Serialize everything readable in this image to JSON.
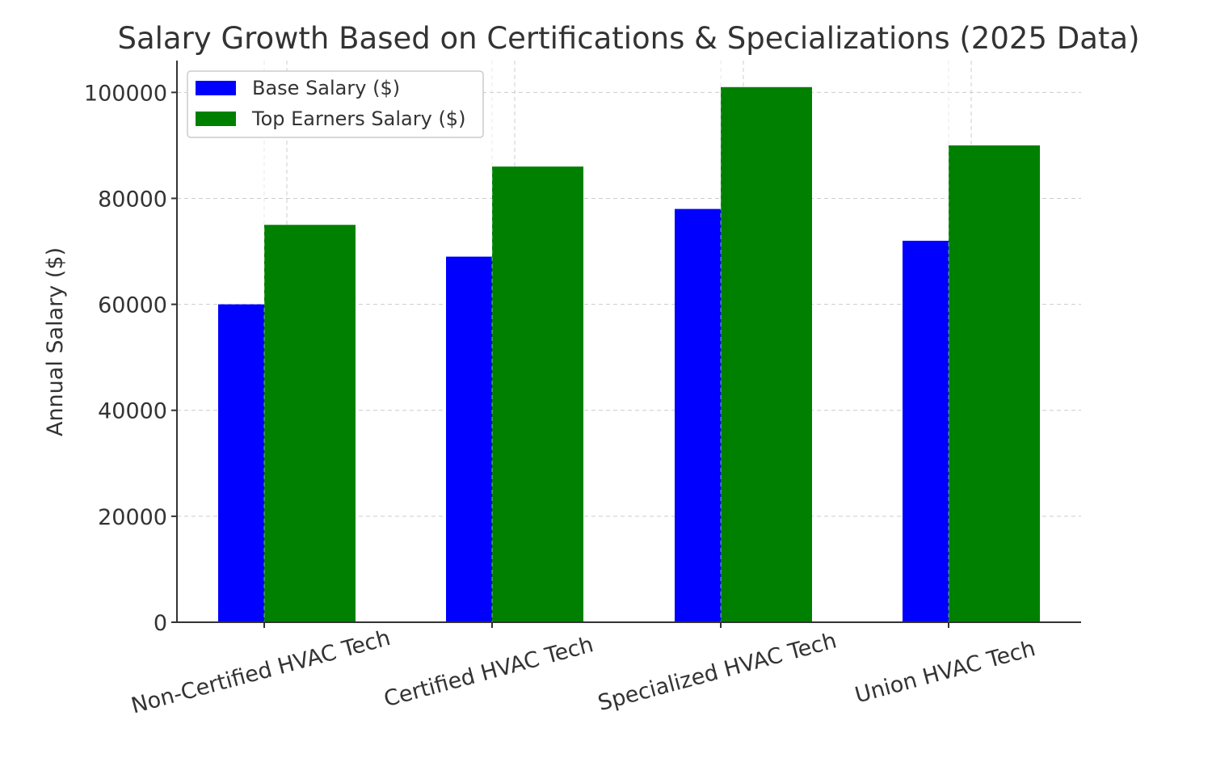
{
  "chart_data": {
    "type": "bar",
    "title": "Salary Growth Based on Certifications & Specializations (2025 Data)",
    "xlabel": "",
    "ylabel": "Annual Salary ($)",
    "categories": [
      "Non-Certified HVAC Tech",
      "Certified HVAC Tech",
      "Specialized HVAC Tech",
      "Union HVAC Tech"
    ],
    "series": [
      {
        "name": "Base Salary ($)",
        "values": [
          60000,
          69000,
          78000,
          72000
        ],
        "color": "#0000ff"
      },
      {
        "name": "Top Earners Salary ($)",
        "values": [
          75000,
          86000,
          101000,
          90000
        ],
        "color": "#008000"
      }
    ],
    "ylim": [
      0,
      106000
    ],
    "yticks": [
      0,
      20000,
      40000,
      60000,
      80000,
      100000
    ],
    "ytick_labels": [
      "0",
      "20000",
      "40000",
      "60000",
      "80000",
      "100000"
    ],
    "grid": true,
    "legend_position": "top-left"
  }
}
